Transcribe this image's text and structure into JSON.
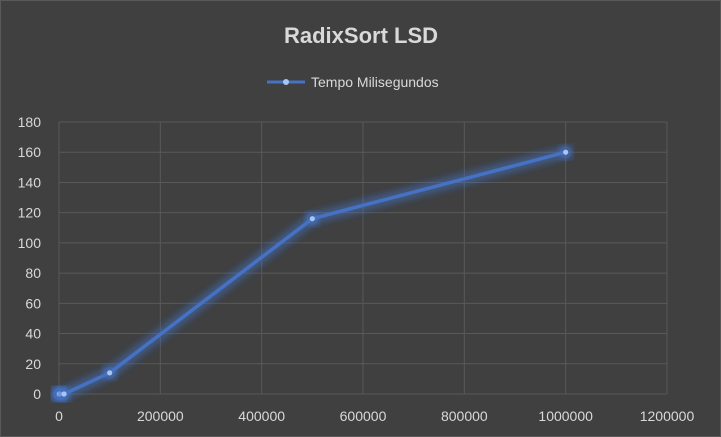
{
  "chart_data": {
    "type": "scatter",
    "title": "RadixSort LSD",
    "xlabel": "",
    "ylabel": "",
    "xlim": [
      0,
      1200000
    ],
    "ylim": [
      0,
      180
    ],
    "x_ticks": [
      "0",
      "200000",
      "400000",
      "600000",
      "800000",
      "1000000",
      "1200000"
    ],
    "y_ticks": [
      "0",
      "20",
      "40",
      "60",
      "80",
      "100",
      "120",
      "140",
      "160",
      "180"
    ],
    "x_tick_values": [
      0,
      200000,
      400000,
      600000,
      800000,
      1000000,
      1200000
    ],
    "y_tick_values": [
      0,
      20,
      40,
      60,
      80,
      100,
      120,
      140,
      160,
      180
    ],
    "grid": true,
    "legend_position": "top",
    "series": [
      {
        "name": "Tempo Milisegundos",
        "color": "#4472c4",
        "x": [
          10,
          100,
          1000,
          10000,
          100000,
          500000,
          1000000
        ],
        "y": [
          0,
          0,
          0,
          0,
          14,
          116,
          160
        ]
      }
    ],
    "colors": {
      "background": "#404040",
      "grid": "#595959",
      "text": "#d9d9d9",
      "line": "#4472c4",
      "marker": "#a9c4ef"
    }
  }
}
